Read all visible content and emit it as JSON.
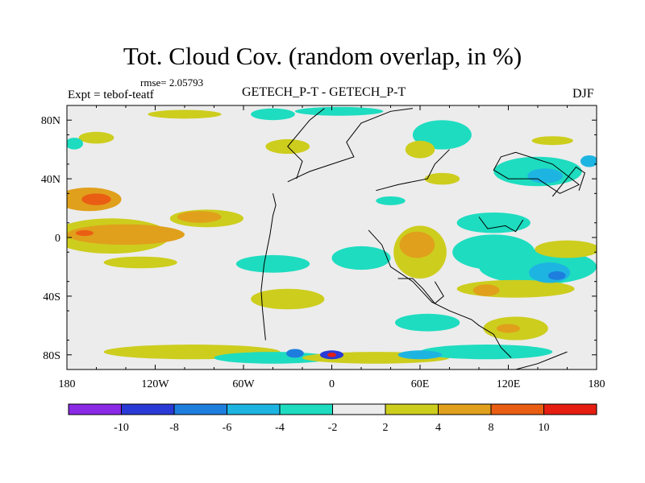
{
  "chart_data": {
    "type": "heatmap",
    "title": "Tot. Cloud Cov. (random overlap, in %)",
    "rmse_label": "rmse= 2.05793",
    "experiment_label": "Expt = tebof-teatf",
    "subtitle": "GETECH_P-T - GETECH_P-T",
    "season": "DJF",
    "x_axis": {
      "range": [
        -180,
        180
      ],
      "ticks": [
        -180,
        -120,
        -60,
        0,
        60,
        120,
        180
      ],
      "tick_labels": [
        "180",
        "120W",
        "60W",
        "0",
        "60E",
        "120E",
        "180"
      ]
    },
    "y_axis": {
      "range": [
        -90,
        90
      ],
      "ticks": [
        80,
        40,
        0,
        -40,
        -80
      ],
      "tick_labels": [
        "80N",
        "40N",
        "0",
        "40S",
        "80S"
      ]
    },
    "colorbar": {
      "boundaries": [
        -10,
        -8,
        -6,
        -4,
        -2,
        2,
        4,
        8,
        10
      ],
      "boundary_labels": [
        "-10",
        "-8",
        "-6",
        "-4",
        "-2",
        "2",
        "4",
        "8",
        "10"
      ],
      "colors": [
        "#8a2ae6",
        "#2a3ad6",
        "#1e7ede",
        "#1eb4e2",
        "#1edcc0",
        "#ececec",
        "#cdcd1e",
        "#e0a01c",
        "#ea5e14",
        "#e61e12"
      ]
    },
    "anomaly_patches": [
      {
        "lon": -165,
        "lat": 26,
        "rx": 22,
        "ry": 8,
        "value": 6
      },
      {
        "lon": -160,
        "lat": 26,
        "rx": 10,
        "ry": 4,
        "value": 8
      },
      {
        "lon": -150,
        "lat": 1,
        "rx": 40,
        "ry": 12,
        "value": 3
      },
      {
        "lon": -140,
        "lat": 2,
        "rx": 40,
        "ry": 7,
        "value": 6
      },
      {
        "lon": -168,
        "lat": 3,
        "rx": 6,
        "ry": 2,
        "value": 9
      },
      {
        "lon": -85,
        "lat": 13,
        "rx": 25,
        "ry": 6,
        "value": 3
      },
      {
        "lon": -90,
        "lat": 14,
        "rx": 15,
        "ry": 4,
        "value": 6
      },
      {
        "lon": -40,
        "lat": -18,
        "rx": 25,
        "ry": 6,
        "value": -3
      },
      {
        "lon": -30,
        "lat": -42,
        "rx": 25,
        "ry": 7,
        "value": 3
      },
      {
        "lon": -95,
        "lat": -78,
        "rx": 60,
        "ry": 5,
        "value": 3
      },
      {
        "lon": -40,
        "lat": -82,
        "rx": 40,
        "ry": 4,
        "value": -3
      },
      {
        "lon": -25,
        "lat": -79,
        "rx": 6,
        "ry": 3,
        "value": -7
      },
      {
        "lon": 0,
        "lat": -80,
        "rx": 8,
        "ry": 3,
        "value": -9
      },
      {
        "lon": 0,
        "lat": -80,
        "rx": 3,
        "ry": 1.5,
        "value": 11
      },
      {
        "lon": 30,
        "lat": -82,
        "rx": 50,
        "ry": 4,
        "value": 3
      },
      {
        "lon": 60,
        "lat": -80,
        "rx": 15,
        "ry": 3,
        "value": -5
      },
      {
        "lon": 105,
        "lat": -78,
        "rx": 45,
        "ry": 5,
        "value": -3
      },
      {
        "lon": 20,
        "lat": -14,
        "rx": 20,
        "ry": 8,
        "value": -3
      },
      {
        "lon": 60,
        "lat": -10,
        "rx": 18,
        "ry": 18,
        "value": 3
      },
      {
        "lon": 58,
        "lat": -5,
        "rx": 12,
        "ry": 9,
        "value": 6
      },
      {
        "lon": 65,
        "lat": -58,
        "rx": 22,
        "ry": 6,
        "value": -3
      },
      {
        "lon": 110,
        "lat": -10,
        "rx": 28,
        "ry": 12,
        "value": -3
      },
      {
        "lon": 140,
        "lat": -20,
        "rx": 40,
        "ry": 12,
        "value": -3
      },
      {
        "lon": 148,
        "lat": -24,
        "rx": 14,
        "ry": 7,
        "value": -5
      },
      {
        "lon": 153,
        "lat": -26,
        "rx": 6,
        "ry": 3,
        "value": -7
      },
      {
        "lon": 160,
        "lat": -8,
        "rx": 22,
        "ry": 6,
        "value": 3
      },
      {
        "lon": 125,
        "lat": -35,
        "rx": 40,
        "ry": 6,
        "value": 3
      },
      {
        "lon": 105,
        "lat": -36,
        "rx": 9,
        "ry": 4,
        "value": 6
      },
      {
        "lon": 125,
        "lat": -62,
        "rx": 22,
        "ry": 8,
        "value": 3
      },
      {
        "lon": 120,
        "lat": -62,
        "rx": 8,
        "ry": 3,
        "value": 6
      },
      {
        "lon": 140,
        "lat": 45,
        "rx": 30,
        "ry": 10,
        "value": -3
      },
      {
        "lon": 145,
        "lat": 42,
        "rx": 12,
        "ry": 5,
        "value": -5
      },
      {
        "lon": 175,
        "lat": 52,
        "rx": 6,
        "ry": 4,
        "value": -5
      },
      {
        "lon": 110,
        "lat": 10,
        "rx": 25,
        "ry": 7,
        "value": -3
      },
      {
        "lon": 75,
        "lat": 70,
        "rx": 20,
        "ry": 10,
        "value": -3
      },
      {
        "lon": 60,
        "lat": 60,
        "rx": 10,
        "ry": 6,
        "value": 3
      },
      {
        "lon": 75,
        "lat": 40,
        "rx": 12,
        "ry": 4,
        "value": 3
      },
      {
        "lon": 150,
        "lat": 66,
        "rx": 14,
        "ry": 3,
        "value": 3
      },
      {
        "lon": -30,
        "lat": 62,
        "rx": 15,
        "ry": 5,
        "value": 3
      },
      {
        "lon": -160,
        "lat": 68,
        "rx": 12,
        "ry": 4,
        "value": 3
      },
      {
        "lon": -175,
        "lat": 64,
        "rx": 6,
        "ry": 4,
        "value": -3
      },
      {
        "lon": -40,
        "lat": 84,
        "rx": 15,
        "ry": 4,
        "value": -3
      },
      {
        "lon": 5,
        "lat": 86,
        "rx": 30,
        "ry": 3,
        "value": -3
      },
      {
        "lon": -100,
        "lat": 84,
        "rx": 25,
        "ry": 3,
        "value": 3
      },
      {
        "lon": -130,
        "lat": -17,
        "rx": 25,
        "ry": 4,
        "value": 3
      },
      {
        "lon": 40,
        "lat": 25,
        "rx": 10,
        "ry": 3,
        "value": -3
      }
    ],
    "coastlines": [
      {
        "lonlat": [
          [
            -24,
            40
          ],
          [
            -20,
            52
          ],
          [
            -30,
            62
          ],
          [
            -15,
            80
          ],
          [
            -5,
            88
          ]
        ]
      },
      {
        "lonlat": [
          [
            -40,
            30
          ],
          [
            -38,
            22
          ],
          [
            -40,
            15
          ],
          [
            -42,
            2
          ],
          [
            -46,
            -18
          ],
          [
            -48,
            -36
          ],
          [
            -47,
            -50
          ],
          [
            -45,
            -70
          ]
        ]
      },
      {
        "lonlat": [
          [
            -30,
            38
          ],
          [
            -15,
            45
          ],
          [
            0,
            50
          ],
          [
            15,
            55
          ],
          [
            10,
            65
          ],
          [
            20,
            78
          ],
          [
            40,
            86
          ],
          [
            55,
            88
          ]
        ]
      },
      {
        "lonlat": [
          [
            30,
            32
          ],
          [
            45,
            36
          ],
          [
            65,
            40
          ],
          [
            70,
            50
          ],
          [
            80,
            60
          ]
        ]
      },
      {
        "lonlat": [
          [
            25,
            5
          ],
          [
            34,
            -5
          ],
          [
            40,
            -20
          ],
          [
            55,
            -30
          ],
          [
            68,
            -44
          ],
          [
            80,
            -50
          ],
          [
            95,
            -56
          ],
          [
            100,
            -60
          ],
          [
            110,
            -66
          ],
          [
            115,
            -75
          ],
          [
            122,
            -82
          ]
        ]
      },
      {
        "lonlat": [
          [
            45,
            -28
          ],
          [
            55,
            -28
          ],
          [
            62,
            -35
          ],
          [
            70,
            -45
          ],
          [
            76,
            -40
          ],
          [
            70,
            -30
          ]
        ]
      },
      {
        "lonlat": [
          [
            150,
            28
          ],
          [
            158,
            38
          ],
          [
            166,
            48
          ],
          [
            172,
            44
          ],
          [
            168,
            32
          ]
        ]
      },
      {
        "lonlat": [
          [
            115,
            55
          ],
          [
            110,
            46
          ],
          [
            120,
            40
          ],
          [
            140,
            40
          ],
          [
            155,
            30
          ],
          [
            168,
            36
          ],
          [
            150,
            50
          ],
          [
            125,
            58
          ],
          [
            115,
            55
          ]
        ]
      },
      {
        "lonlat": [
          [
            100,
            14
          ],
          [
            106,
            6
          ],
          [
            118,
            8
          ],
          [
            125,
            4
          ],
          [
            130,
            12
          ]
        ]
      },
      {
        "lonlat": [
          [
            160,
            -78
          ],
          [
            150,
            -82
          ],
          [
            140,
            -86
          ],
          [
            125,
            -90
          ]
        ]
      }
    ]
  }
}
